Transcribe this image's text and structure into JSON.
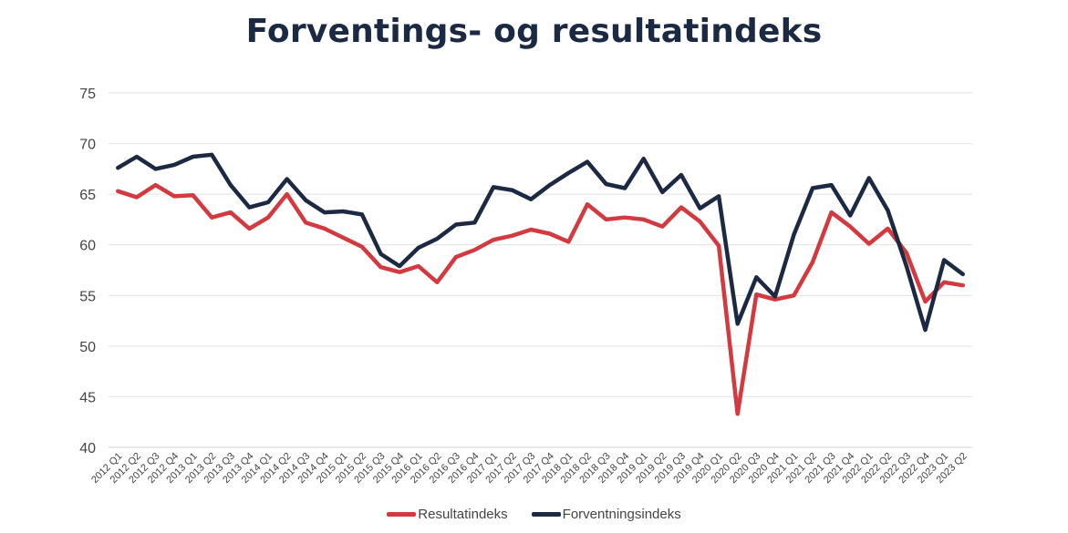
{
  "chart_data": {
    "type": "line",
    "title": "Forventings- og resultatindeks",
    "xlabel": "",
    "ylabel": "",
    "ylim": [
      40,
      75
    ],
    "yticks": [
      40,
      45,
      50,
      55,
      60,
      65,
      70,
      75
    ],
    "grid": true,
    "legend_position": "bottom",
    "categories": [
      "2012 Q1",
      "2012 Q2",
      "2012 Q3",
      "2012 Q4",
      "2013 Q1",
      "2013 Q2",
      "2013 Q3",
      "2013 Q4",
      "2014 Q1",
      "2014 Q2",
      "2014 Q3",
      "2014 Q4",
      "2015 Q1",
      "2015 Q2",
      "2015 Q3",
      "2015 Q4",
      "2016 Q1",
      "2016 Q2",
      "2016 Q3",
      "2016 Q4",
      "2017 Q1",
      "2017 Q2",
      "2017 Q3",
      "2017 Q4",
      "2018 Q1",
      "2018 Q2",
      "2018 Q3",
      "2018 Q4",
      "2019 Q1",
      "2019 Q2",
      "2019 Q3",
      "2019 Q4",
      "2020 Q1",
      "2020 Q2",
      "2020 Q3",
      "2020 Q4",
      "2021 Q1",
      "2021 Q2",
      "2021 Q3",
      "2021 Q4",
      "2022 Q1",
      "2022 Q2",
      "2022 Q3",
      "2022 Q4",
      "2023 Q1",
      "2023 Q2"
    ],
    "series": [
      {
        "name": "Resultatindeks",
        "color": "#d33a3f",
        "values": [
          65.3,
          64.7,
          65.9,
          64.8,
          64.9,
          62.7,
          63.2,
          61.6,
          62.7,
          65.0,
          62.2,
          61.6,
          60.7,
          59.8,
          57.8,
          57.3,
          57.9,
          56.3,
          58.8,
          59.5,
          60.5,
          60.9,
          61.5,
          61.1,
          60.3,
          64.0,
          62.5,
          62.7,
          62.5,
          61.8,
          63.7,
          62.3,
          59.9,
          43.3,
          55.1,
          54.6,
          55.0,
          58.3,
          63.2,
          61.8,
          60.1,
          61.6,
          59.2,
          54.4,
          56.3,
          56.0
        ]
      },
      {
        "name": "Forventningsindeks",
        "color": "#1c2942",
        "values": [
          67.6,
          68.7,
          67.5,
          67.9,
          68.7,
          68.9,
          65.9,
          63.7,
          64.2,
          66.5,
          64.4,
          63.2,
          63.3,
          63.0,
          59.1,
          57.9,
          59.7,
          60.6,
          62.0,
          62.2,
          65.7,
          65.4,
          64.5,
          65.9,
          67.1,
          68.2,
          66.0,
          65.6,
          68.5,
          65.2,
          66.9,
          63.6,
          64.8,
          52.2,
          56.8,
          54.9,
          61.0,
          65.6,
          65.9,
          62.9,
          66.6,
          63.4,
          57.9,
          51.6,
          58.5,
          57.1
        ]
      }
    ]
  }
}
